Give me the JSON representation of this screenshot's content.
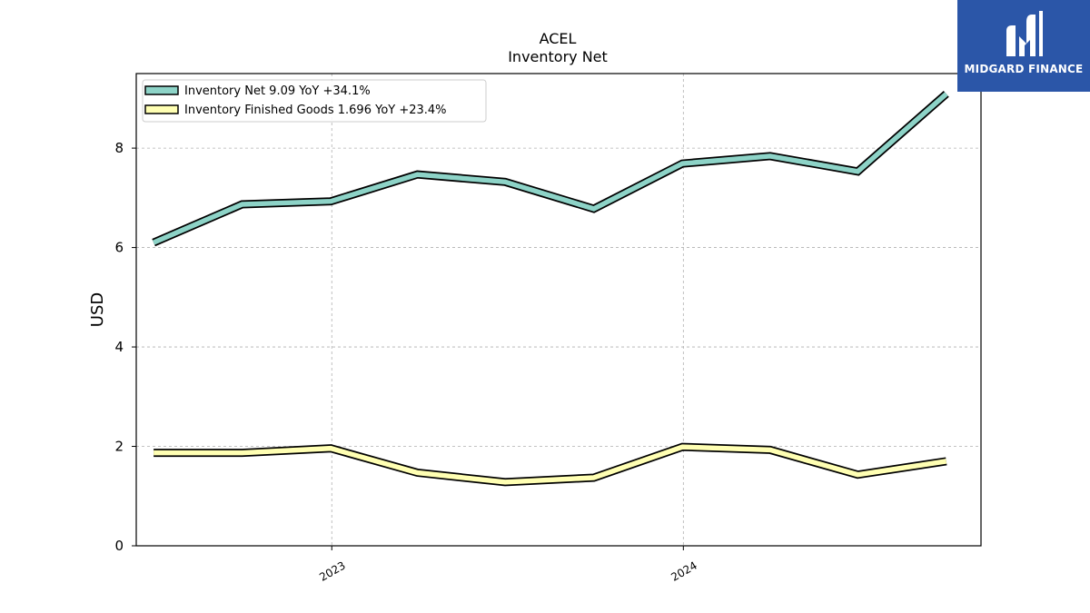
{
  "chart_data": {
    "type": "line",
    "title": "ACEL",
    "subtitle": "Inventory Net",
    "xlabel": "",
    "ylabel": "USD",
    "xlim": [
      "2022-06-12",
      "2024-11-05"
    ],
    "ylim": [
      0,
      9.5
    ],
    "yticks": [
      0,
      2,
      4,
      6,
      8
    ],
    "xticks": [
      {
        "label": "2023",
        "value": "2023-01-01"
      },
      {
        "label": "2024",
        "value": "2024-01-01"
      }
    ],
    "grid": true,
    "legend_position": "top-left",
    "x": [
      "2022-06-30",
      "2022-09-30",
      "2022-12-31",
      "2023-03-31",
      "2023-06-30",
      "2023-09-30",
      "2023-12-31",
      "2024-03-31",
      "2024-06-30",
      "2024-09-30"
    ],
    "series": [
      {
        "name": "Inventory Net",
        "legend_label": "Inventory Net  9.09 YoY +34.1%",
        "color": "#8dd3c7",
        "values": [
          6.1,
          6.87,
          6.93,
          7.47,
          7.32,
          6.78,
          7.69,
          7.84,
          7.53,
          9.09
        ]
      },
      {
        "name": "Inventory Finished Goods",
        "legend_label": "Inventory Finished Goods  1.696 YoY +23.4%",
        "color": "#ffffb3",
        "values": [
          1.87,
          1.87,
          1.96,
          1.47,
          1.28,
          1.37,
          1.99,
          1.93,
          1.43,
          1.7
        ]
      }
    ]
  },
  "logo": {
    "text": "MIDGARD FINANCE",
    "bg_color": "#2b56a8"
  }
}
